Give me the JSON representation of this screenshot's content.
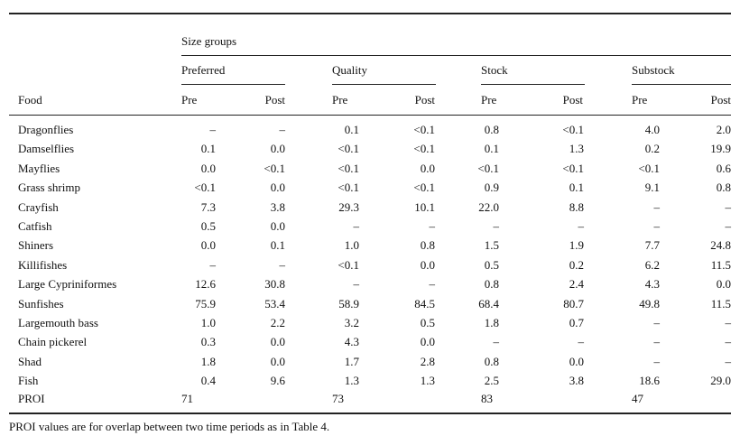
{
  "table": {
    "size_groups_label": "Size groups",
    "food_header": "Food",
    "groups": [
      {
        "name": "Preferred"
      },
      {
        "name": "Quality"
      },
      {
        "name": "Stock"
      },
      {
        "name": "Substock"
      }
    ],
    "sub_headers": [
      "Pre",
      "Post",
      "Pre",
      "Post",
      "Pre",
      "Post",
      "Pre",
      "Post"
    ],
    "rows": [
      {
        "food": "Dragonflies",
        "values": [
          "–",
          "–",
          "0.1",
          "<0.1",
          "0.8",
          "<0.1",
          "4.0",
          "2.0"
        ]
      },
      {
        "food": "Damselflies",
        "values": [
          "0.1",
          "0.0",
          "<0.1",
          "<0.1",
          "0.1",
          "1.3",
          "0.2",
          "19.9"
        ]
      },
      {
        "food": "Mayflies",
        "values": [
          "0.0",
          "<0.1",
          "<0.1",
          "0.0",
          "<0.1",
          "<0.1",
          "<0.1",
          "0.6"
        ]
      },
      {
        "food": "Grass shrimp",
        "values": [
          "<0.1",
          "0.0",
          "<0.1",
          "<0.1",
          "0.9",
          "0.1",
          "9.1",
          "0.8"
        ]
      },
      {
        "food": "Crayfish",
        "values": [
          "7.3",
          "3.8",
          "29.3",
          "10.1",
          "22.0",
          "8.8",
          "–",
          "–"
        ]
      },
      {
        "food": "Catfish",
        "values": [
          "0.5",
          "0.0",
          "–",
          "–",
          "–",
          "–",
          "–",
          "–"
        ]
      },
      {
        "food": "Shiners",
        "values": [
          "0.0",
          "0.1",
          "1.0",
          "0.8",
          "1.5",
          "1.9",
          "7.7",
          "24.8"
        ]
      },
      {
        "food": "Killifishes",
        "values": [
          "–",
          "–",
          "<0.1",
          "0.0",
          "0.5",
          "0.2",
          "6.2",
          "11.5"
        ]
      },
      {
        "food": "Large Cypriniformes",
        "values": [
          "12.6",
          "30.8",
          "–",
          "–",
          "0.8",
          "2.4",
          "4.3",
          "0.0"
        ]
      },
      {
        "food": "Sunfishes",
        "values": [
          "75.9",
          "53.4",
          "58.9",
          "84.5",
          "68.4",
          "80.7",
          "49.8",
          "11.5"
        ]
      },
      {
        "food": "Largemouth bass",
        "values": [
          "1.0",
          "2.2",
          "3.2",
          "0.5",
          "1.8",
          "0.7",
          "–",
          "–"
        ]
      },
      {
        "food": "Chain pickerel",
        "values": [
          "0.3",
          "0.0",
          "4.3",
          "0.0",
          "–",
          "–",
          "–",
          "–"
        ]
      },
      {
        "food": "Shad",
        "values": [
          "1.8",
          "0.0",
          "1.7",
          "2.8",
          "0.8",
          "0.0",
          "–",
          "–"
        ]
      },
      {
        "food": "Fish",
        "values": [
          "0.4",
          "9.6",
          "1.3",
          "1.3",
          "2.5",
          "3.8",
          "18.6",
          "29.0"
        ]
      }
    ],
    "proi": {
      "label": "PROI",
      "values": [
        "71",
        "73",
        "83",
        "47"
      ]
    },
    "footnote": "PROI values are for overlap between two time periods as in Table 4."
  }
}
